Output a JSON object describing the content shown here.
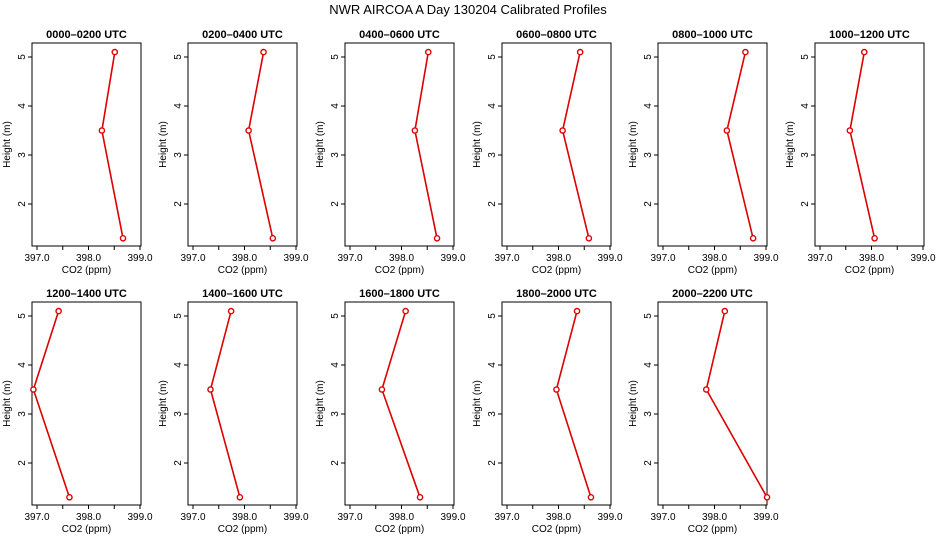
{
  "title": "NWR AIRCOA A  Day 130204  Calibrated Profiles",
  "colors": {
    "profile": "#dd0000",
    "axis": "#000000"
  },
  "chart_data": [
    {
      "type": "line",
      "title": "0000–0200 UTC",
      "xlabel": "CO2 (ppm)",
      "ylabel": "Height (m)",
      "xlim": [
        396.9,
        399.1
      ],
      "ylim": [
        1.3,
        5.1
      ],
      "xticks": [
        "397.0",
        "398.0",
        "399.0"
      ],
      "yticks": [
        "2",
        "3",
        "4",
        "5"
      ],
      "grid": false,
      "series": [
        {
          "x": [
            398.51,
            398.26,
            398.67
          ],
          "y": [
            5.1,
            3.5,
            1.3
          ]
        }
      ]
    },
    {
      "type": "line",
      "title": "0200–0400 UTC",
      "xlabel": "CO2 (ppm)",
      "ylabel": "Height (m)",
      "xlim": [
        396.9,
        399.1
      ],
      "ylim": [
        1.3,
        5.1
      ],
      "xticks": [
        "397.0",
        "398.0",
        "399.0"
      ],
      "yticks": [
        "2",
        "3",
        "4",
        "5"
      ],
      "grid": false,
      "series": [
        {
          "x": [
            398.37,
            398.08,
            398.55
          ],
          "y": [
            5.1,
            3.5,
            1.3
          ]
        }
      ]
    },
    {
      "type": "line",
      "title": "0400–0600 UTC",
      "xlabel": "CO2 (ppm)",
      "ylabel": "Height (m)",
      "xlim": [
        396.9,
        399.1
      ],
      "ylim": [
        1.3,
        5.1
      ],
      "xticks": [
        "397.0",
        "398.0",
        "399.0"
      ],
      "yticks": [
        "2",
        "3",
        "4",
        "5"
      ],
      "grid": false,
      "series": [
        {
          "x": [
            398.52,
            398.26,
            398.69
          ],
          "y": [
            5.1,
            3.5,
            1.3
          ]
        }
      ]
    },
    {
      "type": "line",
      "title": "0600–0800 UTC",
      "xlabel": "CO2 (ppm)",
      "ylabel": "Height (m)",
      "xlim": [
        396.9,
        399.1
      ],
      "ylim": [
        1.3,
        5.1
      ],
      "xticks": [
        "397.0",
        "398.0",
        "399.0"
      ],
      "yticks": [
        "2",
        "3",
        "4",
        "5"
      ],
      "grid": false,
      "series": [
        {
          "x": [
            398.42,
            398.08,
            398.59
          ],
          "y": [
            5.1,
            3.5,
            1.3
          ]
        }
      ]
    },
    {
      "type": "line",
      "title": "0800–1000 UTC",
      "xlabel": "CO2 (ppm)",
      "ylabel": "Height (m)",
      "xlim": [
        396.9,
        399.1
      ],
      "ylim": [
        1.3,
        5.1
      ],
      "xticks": [
        "397.0",
        "398.0",
        "399.0"
      ],
      "yticks": [
        "2",
        "3",
        "4",
        "5"
      ],
      "grid": false,
      "series": [
        {
          "x": [
            398.6,
            398.24,
            398.75
          ],
          "y": [
            5.1,
            3.5,
            1.3
          ]
        }
      ]
    },
    {
      "type": "line",
      "title": "1000–1200 UTC",
      "xlabel": "CO2 (ppm)",
      "ylabel": "Height (m)",
      "xlim": [
        396.9,
        399.1
      ],
      "ylim": [
        1.3,
        5.1
      ],
      "xticks": [
        "397.0",
        "398.0",
        "399.0"
      ],
      "yticks": [
        "2",
        "3",
        "4",
        "5"
      ],
      "grid": false,
      "series": [
        {
          "x": [
            397.86,
            397.58,
            398.06
          ],
          "y": [
            5.1,
            3.5,
            1.3
          ]
        }
      ]
    },
    {
      "type": "line",
      "title": "1200–1400 UTC",
      "xlabel": "CO2 (ppm)",
      "ylabel": "Height (m)",
      "xlim": [
        396.9,
        399.1
      ],
      "ylim": [
        1.3,
        5.1
      ],
      "xticks": [
        "397.0",
        "398.0",
        "399.0"
      ],
      "yticks": [
        "2",
        "3",
        "4",
        "5"
      ],
      "grid": false,
      "series": [
        {
          "x": [
            397.42,
            396.93,
            397.63
          ],
          "y": [
            5.1,
            3.5,
            1.3
          ]
        }
      ]
    },
    {
      "type": "line",
      "title": "1400–1600 UTC",
      "xlabel": "CO2 (ppm)",
      "ylabel": "Height (m)",
      "xlim": [
        396.9,
        399.1
      ],
      "ylim": [
        1.3,
        5.1
      ],
      "xticks": [
        "397.0",
        "398.0",
        "399.0"
      ],
      "yticks": [
        "2",
        "3",
        "4",
        "5"
      ],
      "grid": false,
      "series": [
        {
          "x": [
            397.74,
            397.34,
            397.91
          ],
          "y": [
            5.1,
            3.5,
            1.3
          ]
        }
      ]
    },
    {
      "type": "line",
      "title": "1600–1800 UTC",
      "xlabel": "CO2 (ppm)",
      "ylabel": "Height (m)",
      "xlim": [
        396.9,
        399.1
      ],
      "ylim": [
        1.3,
        5.1
      ],
      "xticks": [
        "397.0",
        "398.0",
        "399.0"
      ],
      "yticks": [
        "2",
        "3",
        "4",
        "5"
      ],
      "grid": false,
      "series": [
        {
          "x": [
            398.08,
            397.62,
            398.36
          ],
          "y": [
            5.1,
            3.5,
            1.3
          ]
        }
      ]
    },
    {
      "type": "line",
      "title": "1800–2000 UTC",
      "xlabel": "CO2 (ppm)",
      "ylabel": "Height (m)",
      "xlim": [
        396.9,
        399.1
      ],
      "ylim": [
        1.3,
        5.1
      ],
      "xticks": [
        "397.0",
        "398.0",
        "399.0"
      ],
      "yticks": [
        "2",
        "3",
        "4",
        "5"
      ],
      "grid": false,
      "series": [
        {
          "x": [
            398.36,
            397.96,
            398.63
          ],
          "y": [
            5.1,
            3.5,
            1.3
          ]
        }
      ]
    },
    {
      "type": "line",
      "title": "2000–2200 UTC",
      "xlabel": "CO2 (ppm)",
      "ylabel": "Height (m)",
      "xlim": [
        396.9,
        399.1
      ],
      "ylim": [
        1.3,
        5.1
      ],
      "xticks": [
        "397.0",
        "398.0",
        "399.0"
      ],
      "yticks": [
        "2",
        "3",
        "4",
        "5"
      ],
      "grid": false,
      "series": [
        {
          "x": [
            398.2,
            397.84,
            399.02
          ],
          "y": [
            5.1,
            3.5,
            1.3
          ]
        }
      ]
    }
  ]
}
